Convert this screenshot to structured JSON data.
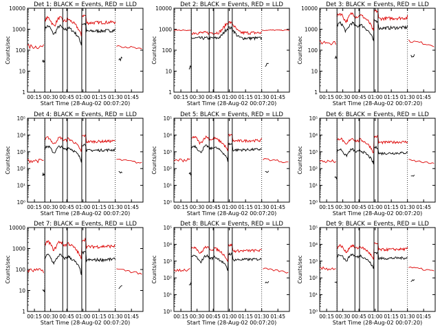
{
  "chart_data": [
    {
      "type": "line",
      "title": "Det 1:  BLACK = Events, RED = LLD",
      "xlabel": "Start Time (28-Aug-02 00:07:20)",
      "ylabel": "Counts/sec",
      "x_tick_labels": [
        "00:15",
        "00:30",
        "00:45",
        "01:00",
        "01:15",
        "01:30",
        "01:45"
      ],
      "y_tick_labels": [
        "1",
        "10",
        "100",
        "1000",
        "10000"
      ],
      "ylim": [
        1,
        10000
      ],
      "scale": "log",
      "series": [
        {
          "color": "#000000",
          "profile": "dip",
          "level": 1000
        },
        {
          "color": "#dd0000",
          "profile": "dip",
          "level": 2500
        }
      ]
    },
    {
      "type": "line",
      "title": "Det 2:  BLACK = Events, RED = LLD",
      "xlabel": "Start Time (28-Aug-02 00:07:20)",
      "ylabel": "Counts/sec",
      "x_tick_labels": [
        "00:15",
        "00:30",
        "00:45",
        "01:00",
        "01:15",
        "01:30",
        "01:45"
      ],
      "y_tick_labels": [
        "1",
        "10",
        "100",
        "1000",
        "10000"
      ],
      "ylim": [
        1,
        10000
      ],
      "scale": "log",
      "series": [
        {
          "color": "#000000",
          "profile": "peak",
          "level": 500
        },
        {
          "color": "#dd0000",
          "profile": "peak",
          "level": 900
        }
      ]
    },
    {
      "type": "line",
      "title": "Det 3:  BLACK = Events, RED = LLD",
      "xlabel": "Start Time (28-Aug-02 00:07:20)",
      "ylabel": "Counts/sec",
      "x_tick_labels": [
        "00:15",
        "00:30",
        "00:45",
        "01:00",
        "01:15",
        "01:30",
        "01:45"
      ],
      "y_tick_labels": [
        "1",
        "10",
        "100",
        "1000",
        "10000"
      ],
      "ylim": [
        1,
        10000
      ],
      "scale": "log",
      "series": [
        {
          "color": "#000000",
          "profile": "dip",
          "level": 1400
        },
        {
          "color": "#dd0000",
          "profile": "dip",
          "level": 4000
        }
      ]
    },
    {
      "type": "line",
      "title": "Det 4:  BLACK = Events, RED = LLD",
      "xlabel": "Start Time (28-Aug-02 00:07:20)",
      "ylabel": "Counts/sec",
      "x_tick_labels": [
        "00:15",
        "00:30",
        "00:45",
        "01:00",
        "01:15",
        "01:30",
        "01:45"
      ],
      "y_tick_labels": [
        "10⁰",
        "10¹",
        "10²",
        "10³",
        "10⁴",
        "10⁵"
      ],
      "ylim": [
        1,
        100000
      ],
      "scale": "log",
      "series": [
        {
          "color": "#000000",
          "profile": "dip",
          "level": 1500
        },
        {
          "color": "#dd0000",
          "profile": "dip",
          "level": 5000
        }
      ]
    },
    {
      "type": "line",
      "title": "Det 5:  BLACK = Events, RED = LLD",
      "xlabel": "Start Time (28-Aug-02 00:07:20)",
      "ylabel": "Counts/sec",
      "x_tick_labels": [
        "00:15",
        "00:30",
        "00:45",
        "01:00",
        "01:15",
        "01:30",
        "01:45"
      ],
      "y_tick_labels": [
        "10⁰",
        "10¹",
        "10²",
        "10³",
        "10⁴",
        "10⁵"
      ],
      "ylim": [
        1,
        100000
      ],
      "scale": "log",
      "series": [
        {
          "color": "#000000",
          "profile": "dip",
          "level": 1600
        },
        {
          "color": "#dd0000",
          "profile": "dip",
          "level": 5500
        }
      ]
    },
    {
      "type": "line",
      "title": "Det 6:  BLACK = Events, RED = LLD",
      "xlabel": "Start Time (28-Aug-02 00:07:20)",
      "ylabel": "Counts/sec",
      "x_tick_labels": [
        "00:15",
        "00:30",
        "00:45",
        "01:00",
        "01:15",
        "01:30",
        "01:45"
      ],
      "y_tick_labels": [
        "10⁰",
        "10¹",
        "10²",
        "10³",
        "10⁴",
        "10⁵"
      ],
      "ylim": [
        1,
        100000
      ],
      "scale": "log",
      "series": [
        {
          "color": "#000000",
          "profile": "dip",
          "level": 1000
        },
        {
          "color": "#dd0000",
          "profile": "dip",
          "level": 4500
        }
      ]
    },
    {
      "type": "line",
      "title": "Det 7:  BLACK = Events, RED = LLD",
      "xlabel": "Start Time (28-Aug-02 00:07:20)",
      "ylabel": "Counts/sec",
      "x_tick_labels": [
        "00:15",
        "00:30",
        "00:45",
        "01:00",
        "01:15",
        "01:30",
        "01:45"
      ],
      "y_tick_labels": [
        "1",
        "10",
        "100",
        "1000",
        "10000"
      ],
      "ylim": [
        1,
        10000
      ],
      "scale": "log",
      "series": [
        {
          "color": "#000000",
          "profile": "dip",
          "level": 350
        },
        {
          "color": "#dd0000",
          "profile": "dip",
          "level": 1500
        }
      ]
    },
    {
      "type": "line",
      "title": "Det 8:  BLACK = Events, RED = LLD",
      "xlabel": "Start Time (28-Aug-02 00:07:20)",
      "ylabel": "Counts/sec",
      "x_tick_labels": [
        "00:15",
        "00:30",
        "00:45",
        "01:00",
        "01:15",
        "01:30",
        "01:45"
      ],
      "y_tick_labels": [
        "10⁰",
        "10¹",
        "10²",
        "10³",
        "10⁴",
        "10⁵"
      ],
      "ylim": [
        1,
        100000
      ],
      "scale": "log",
      "series": [
        {
          "color": "#000000",
          "profile": "dip",
          "level": 1500
        },
        {
          "color": "#dd0000",
          "profile": "dip",
          "level": 5000
        }
      ]
    },
    {
      "type": "line",
      "title": "Det 9:  BLACK = Events, RED = LLD",
      "xlabel": "Start Time (28-Aug-02 00:07:20)",
      "ylabel": "Counts/sec",
      "x_tick_labels": [
        "00:15",
        "00:30",
        "00:45",
        "01:00",
        "01:15",
        "01:30",
        "01:45"
      ],
      "y_tick_labels": [
        "10⁰",
        "10¹",
        "10²",
        "10³",
        "10⁴",
        "10⁵"
      ],
      "ylim": [
        1,
        100000
      ],
      "scale": "log",
      "series": [
        {
          "color": "#000000",
          "profile": "dip",
          "level": 1800
        },
        {
          "color": "#dd0000",
          "profile": "dip",
          "level": 6000
        }
      ]
    }
  ]
}
